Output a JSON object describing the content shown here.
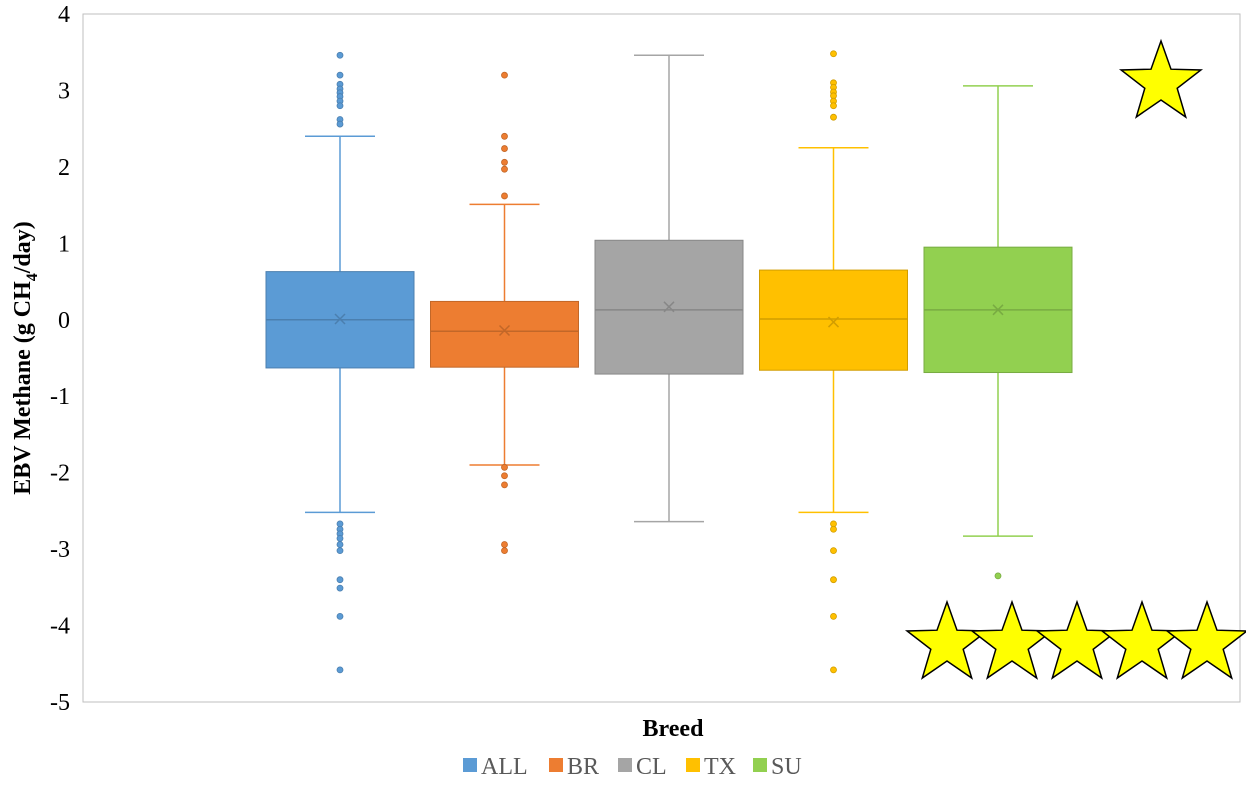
{
  "chart_data": {
    "type": "boxplot",
    "title": "",
    "xlabel": "Breed",
    "ylabel_main": "EBV Methane (g CH",
    "ylabel_sub": "4",
    "ylabel_tail": "/day)",
    "ylim": [
      -5,
      4
    ],
    "yticks": [
      -5,
      -4,
      -3,
      -2,
      -1,
      0,
      1,
      2,
      3,
      4
    ],
    "legend_position": "bottom",
    "series": [
      {
        "name": "ALL",
        "color": "#5B9BD5",
        "q1": -0.63,
        "median": 0.0,
        "q3": 0.63,
        "mean": 0.01,
        "whisker_low": -2.52,
        "whisker_high": 2.4,
        "outliers": [
          3.46,
          3.2,
          3.08,
          3.02,
          2.97,
          2.92,
          2.86,
          2.8,
          2.62,
          2.56,
          -2.67,
          -2.74,
          -2.8,
          -2.86,
          -2.94,
          -3.02,
          -3.4,
          -3.51,
          -3.88,
          -4.58
        ]
      },
      {
        "name": "BR",
        "color": "#ED7D31",
        "q1": -0.62,
        "median": -0.15,
        "q3": 0.24,
        "mean": -0.14,
        "whisker_low": -1.9,
        "whisker_high": 1.51,
        "outliers": [
          3.2,
          2.4,
          2.24,
          2.06,
          1.97,
          1.62,
          -1.93,
          -2.04,
          -2.16,
          -2.94,
          -3.02
        ]
      },
      {
        "name": "CL",
        "color": "#A5A5A5",
        "q1": -0.71,
        "median": 0.13,
        "q3": 1.04,
        "mean": 0.17,
        "whisker_low": -2.64,
        "whisker_high": 3.46,
        "outliers": []
      },
      {
        "name": "TX",
        "color": "#FFC000",
        "q1": -0.66,
        "median": 0.01,
        "q3": 0.65,
        "mean": -0.03,
        "whisker_low": -2.52,
        "whisker_high": 2.25,
        "outliers": [
          3.48,
          3.1,
          3.04,
          2.98,
          2.93,
          2.86,
          2.8,
          2.65,
          -2.67,
          -2.74,
          -3.02,
          -3.4,
          -3.88,
          -4.58
        ]
      },
      {
        "name": "SU",
        "color": "#92D050",
        "q1": -0.69,
        "median": 0.13,
        "q3": 0.95,
        "mean": 0.13,
        "whisker_low": -2.83,
        "whisker_high": 3.06,
        "outliers": [
          -3.35
        ]
      }
    ],
    "rating_stars": {
      "top": 1,
      "bottom": 5
    }
  }
}
